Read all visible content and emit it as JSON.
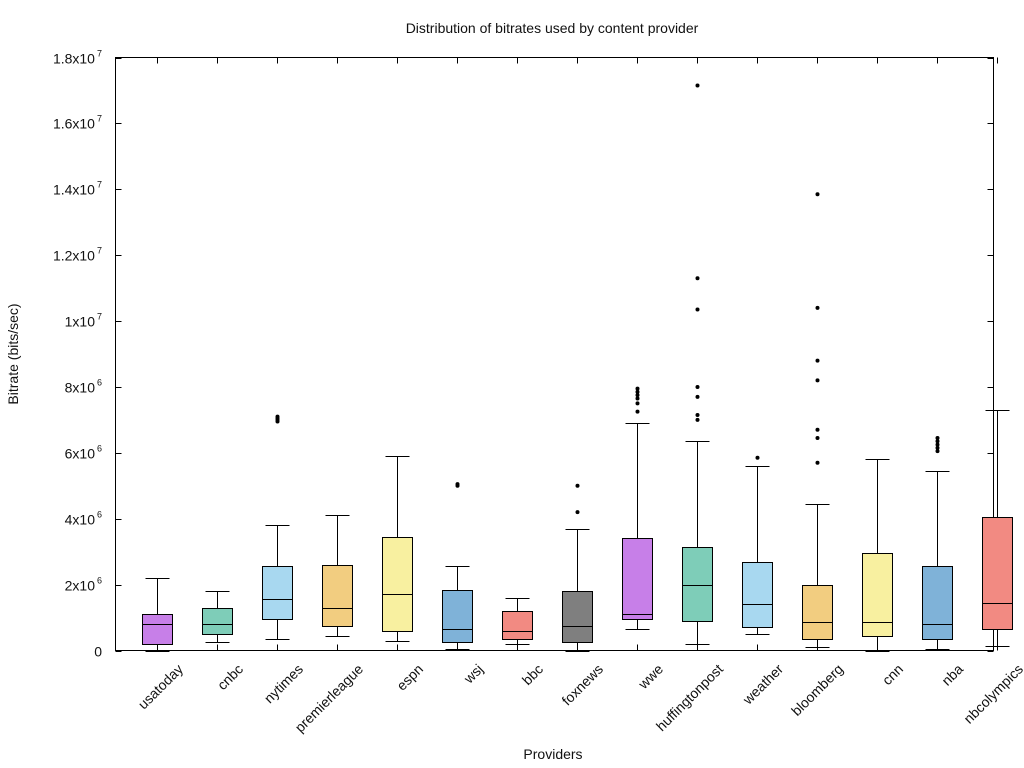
{
  "chart_data": {
    "type": "boxplot",
    "title": "Distribution of bitrates used by content provider",
    "xlabel": "Providers",
    "ylabel": "Bitrate (bits/sec)",
    "ylim": [
      0,
      18000000
    ],
    "yticks": [
      {
        "value": 0,
        "base": "0",
        "exp": ""
      },
      {
        "value": 2000000,
        "base": "2x10",
        "exp": "6"
      },
      {
        "value": 4000000,
        "base": "4x10",
        "exp": "6"
      },
      {
        "value": 6000000,
        "base": "6x10",
        "exp": "6"
      },
      {
        "value": 8000000,
        "base": "8x10",
        "exp": "6"
      },
      {
        "value": 10000000,
        "base": "1x10",
        "exp": "7"
      },
      {
        "value": 12000000,
        "base": "1.2x10",
        "exp": "7"
      },
      {
        "value": 14000000,
        "base": "1.4x10",
        "exp": "7"
      },
      {
        "value": 16000000,
        "base": "1.6x10",
        "exp": "7"
      },
      {
        "value": 18000000,
        "base": "1.8x10",
        "exp": "7"
      }
    ],
    "grid": false,
    "categories": [
      "usatoday",
      "cnbc",
      "nytimes",
      "premierleague",
      "espn",
      "wsj",
      "bbc",
      "foxnews",
      "wwe",
      "huffingtonpost",
      "weather",
      "bloomberg",
      "cnn",
      "nba",
      "nbcolympics"
    ],
    "boxes": [
      {
        "name": "usatoday",
        "min": 0,
        "q1": 200000,
        "median": 800000,
        "q3": 1100000,
        "max": 2200000,
        "outliers": [],
        "color": "#c77fe8"
      },
      {
        "name": "cnbc",
        "min": 250000,
        "q1": 500000,
        "median": 800000,
        "q3": 1300000,
        "max": 1800000,
        "outliers": [],
        "color": "#7ecdb8"
      },
      {
        "name": "nytimes",
        "min": 350000,
        "q1": 950000,
        "median": 1550000,
        "q3": 2550000,
        "max": 3800000,
        "outliers": [
          6950000,
          7000000,
          7050000,
          7100000
        ],
        "color": "#a8d8f0"
      },
      {
        "name": "premierleague",
        "min": 450000,
        "q1": 750000,
        "median": 1300000,
        "q3": 2600000,
        "max": 4100000,
        "outliers": [],
        "color": "#f2cd80"
      },
      {
        "name": "espn",
        "min": 300000,
        "q1": 600000,
        "median": 1700000,
        "q3": 3450000,
        "max": 5900000,
        "outliers": [],
        "color": "#f8f0a0"
      },
      {
        "name": "wsj",
        "min": 50000,
        "q1": 250000,
        "median": 650000,
        "q3": 1850000,
        "max": 2550000,
        "outliers": [
          5000000,
          5050000
        ],
        "color": "#7fb2d8"
      },
      {
        "name": "bbc",
        "min": 200000,
        "q1": 350000,
        "median": 600000,
        "q3": 1200000,
        "max": 1600000,
        "outliers": [],
        "color": "#f28a82"
      },
      {
        "name": "foxnews",
        "min": 0,
        "q1": 250000,
        "median": 750000,
        "q3": 1800000,
        "max": 3700000,
        "outliers": [
          4200000,
          5000000
        ],
        "color": "#7f7f7f"
      },
      {
        "name": "wwe",
        "min": 650000,
        "q1": 950000,
        "median": 1100000,
        "q3": 3400000,
        "max": 6900000,
        "outliers": [
          7250000,
          7500000,
          7650000,
          7750000,
          7850000,
          7950000
        ],
        "color": "#c77fe8"
      },
      {
        "name": "huffingtonpost",
        "min": 200000,
        "q1": 900000,
        "median": 2000000,
        "q3": 3150000,
        "max": 6350000,
        "outliers": [
          7000000,
          7150000,
          7700000,
          8000000,
          10350000,
          11300000,
          17150000
        ],
        "color": "#7ecdb8"
      },
      {
        "name": "weather",
        "min": 500000,
        "q1": 700000,
        "median": 1400000,
        "q3": 2700000,
        "max": 5600000,
        "outliers": [
          5850000
        ],
        "color": "#a8d8f0"
      },
      {
        "name": "bloomberg",
        "min": 100000,
        "q1": 350000,
        "median": 850000,
        "q3": 2000000,
        "max": 4450000,
        "outliers": [
          5700000,
          6450000,
          6700000,
          8200000,
          8800000,
          10400000,
          13850000
        ],
        "color": "#f2cd80"
      },
      {
        "name": "cnn",
        "min": 0,
        "q1": 450000,
        "median": 850000,
        "q3": 2950000,
        "max": 5800000,
        "outliers": [],
        "color": "#f8f0a0"
      },
      {
        "name": "nba",
        "min": 50000,
        "q1": 350000,
        "median": 800000,
        "q3": 2550000,
        "max": 5450000,
        "outliers": [
          6050000,
          6150000,
          6250000,
          6350000,
          6450000
        ],
        "color": "#7fb2d8"
      },
      {
        "name": "nbcolympics",
        "min": 150000,
        "q1": 650000,
        "median": 1450000,
        "q3": 4050000,
        "max": 7300000,
        "outliers": [],
        "color": "#f28a82"
      }
    ]
  }
}
